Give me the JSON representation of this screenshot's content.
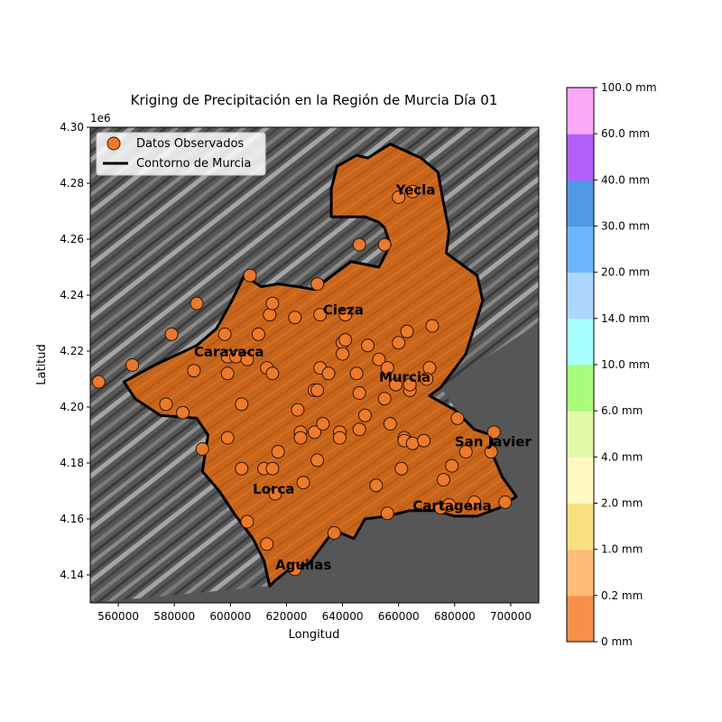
{
  "chart_data": {
    "type": "scatter",
    "title": "Kriging de Precipitación en la Región de Murcia Día 01",
    "xlabel": "Longitud",
    "ylabel": "Latitud",
    "y_offset_label": "1e6",
    "xlim": [
      550000,
      710000
    ],
    "ylim": [
      4130000,
      4300000
    ],
    "x_ticks": [
      560000,
      580000,
      600000,
      620000,
      640000,
      660000,
      680000,
      700000
    ],
    "x_tick_labels": [
      "560000",
      "580000",
      "600000",
      "620000",
      "640000",
      "660000",
      "680000",
      "700000"
    ],
    "y_ticks": [
      4140000,
      4160000,
      4180000,
      4200000,
      4220000,
      4240000,
      4260000,
      4280000,
      4300000
    ],
    "y_tick_labels": [
      "4.14",
      "4.16",
      "4.18",
      "4.20",
      "4.22",
      "4.24",
      "4.26",
      "4.28",
      "4.30"
    ],
    "legend": {
      "placement": "top-left",
      "entries": [
        {
          "label": "Datos Observados",
          "kind": "marker"
        },
        {
          "label": "Contorno de Murcia",
          "kind": "line"
        }
      ]
    },
    "colors": {
      "region_fill": "#c8651b",
      "marker_fill": "#f07a2a",
      "marker_edge": "#2a1608",
      "contour": "#000000",
      "hillshade_dark": "#4a4a4a",
      "hillshade_mid": "#6e6e6e",
      "hillshade_light": "#c8c8c8"
    },
    "colorbar": {
      "labels": [
        "0 mm",
        "0.2 mm",
        "1.0 mm",
        "2.0 mm",
        "4.0 mm",
        "6.0 mm",
        "10.0 mm",
        "14.0 mm",
        "20.0 mm",
        "30.0 mm",
        "40.0 mm",
        "60.0 mm",
        "100.0 mm"
      ],
      "colors": [
        "#f7904a",
        "#ffbb78",
        "#f9e07f",
        "#fff8c3",
        "#e4f9a8",
        "#a9fb7c",
        "#a6fefe",
        "#acd6fe",
        "#6db5fe",
        "#4f98e4",
        "#b35ef9",
        "#fba7fa"
      ]
    },
    "cities": [
      {
        "name": "Yecla",
        "x": 659000,
        "y": 4276000
      },
      {
        "name": "Cieza",
        "x": 633000,
        "y": 4233000
      },
      {
        "name": "Caravaca",
        "x": 587000,
        "y": 4218000
      },
      {
        "name": "Murcia",
        "x": 653000,
        "y": 4209000
      },
      {
        "name": "San Javier",
        "x": 680000,
        "y": 4186000
      },
      {
        "name": "Lorca",
        "x": 608000,
        "y": 4169000
      },
      {
        "name": "Cartagena",
        "x": 665000,
        "y": 4163000
      },
      {
        "name": "Aguilas",
        "x": 616000,
        "y": 4142000
      }
    ],
    "contour": [
      [
        562000,
        4209000
      ],
      [
        573000,
        4215000
      ],
      [
        588000,
        4222000
      ],
      [
        595000,
        4228000
      ],
      [
        600000,
        4237000
      ],
      [
        605000,
        4247000
      ],
      [
        611000,
        4243000
      ],
      [
        617000,
        4244000
      ],
      [
        624000,
        4243000
      ],
      [
        630000,
        4242000
      ],
      [
        635000,
        4246000
      ],
      [
        643000,
        4252000
      ],
      [
        653000,
        4250000
      ],
      [
        657000,
        4258000
      ],
      [
        655000,
        4264000
      ],
      [
        653000,
        4266000
      ],
      [
        648000,
        4268000
      ],
      [
        636000,
        4268000
      ],
      [
        636000,
        4278000
      ],
      [
        638000,
        4286000
      ],
      [
        645000,
        4290000
      ],
      [
        649000,
        4289000
      ],
      [
        657000,
        4294000
      ],
      [
        668000,
        4289000
      ],
      [
        674000,
        4284000
      ],
      [
        676000,
        4273000
      ],
      [
        678000,
        4263000
      ],
      [
        677000,
        4255000
      ],
      [
        688000,
        4247000
      ],
      [
        690000,
        4238000
      ],
      [
        684000,
        4219000
      ],
      [
        675000,
        4207000
      ],
      [
        671000,
        4204000
      ],
      [
        680000,
        4199000
      ],
      [
        687000,
        4192000
      ],
      [
        693000,
        4190000
      ],
      [
        694000,
        4182000
      ],
      [
        697000,
        4175000
      ],
      [
        702000,
        4168000
      ],
      [
        696000,
        4164000
      ],
      [
        688000,
        4161000
      ],
      [
        680000,
        4161000
      ],
      [
        673000,
        4163000
      ],
      [
        664000,
        4163000
      ],
      [
        656000,
        4161000
      ],
      [
        648000,
        4160000
      ],
      [
        644000,
        4153000
      ],
      [
        637000,
        4156000
      ],
      [
        628000,
        4144000
      ],
      [
        621000,
        4142000
      ],
      [
        616000,
        4138000
      ],
      [
        614000,
        4136000
      ],
      [
        612000,
        4145000
      ],
      [
        608000,
        4153000
      ],
      [
        602000,
        4161000
      ],
      [
        596000,
        4170000
      ],
      [
        590000,
        4177000
      ],
      [
        592000,
        4190000
      ],
      [
        588000,
        4196000
      ],
      [
        575000,
        4197000
      ],
      [
        566000,
        4203000
      ]
    ],
    "points": [
      {
        "x": 588000,
        "y": 4237000
      },
      {
        "x": 607000,
        "y": 4247000
      },
      {
        "x": 614000,
        "y": 4233000
      },
      {
        "x": 615000,
        "y": 4237000
      },
      {
        "x": 623000,
        "y": 4232000
      },
      {
        "x": 631000,
        "y": 4244000
      },
      {
        "x": 632000,
        "y": 4233000
      },
      {
        "x": 660000,
        "y": 4275000
      },
      {
        "x": 665000,
        "y": 4277000
      },
      {
        "x": 646000,
        "y": 4258000
      },
      {
        "x": 655000,
        "y": 4258000
      },
      {
        "x": 579000,
        "y": 4226000
      },
      {
        "x": 565000,
        "y": 4215000
      },
      {
        "x": 553000,
        "y": 4209000
      },
      {
        "x": 587000,
        "y": 4213000
      },
      {
        "x": 598000,
        "y": 4226000
      },
      {
        "x": 599000,
        "y": 4218000
      },
      {
        "x": 602000,
        "y": 4218000
      },
      {
        "x": 606000,
        "y": 4217000
      },
      {
        "x": 610000,
        "y": 4226000
      },
      {
        "x": 613000,
        "y": 4214000
      },
      {
        "x": 615000,
        "y": 4212000
      },
      {
        "x": 599000,
        "y": 4212000
      },
      {
        "x": 577000,
        "y": 4201000
      },
      {
        "x": 583000,
        "y": 4198000
      },
      {
        "x": 599000,
        "y": 4189000
      },
      {
        "x": 604000,
        "y": 4201000
      },
      {
        "x": 590000,
        "y": 4185000
      },
      {
        "x": 604000,
        "y": 4178000
      },
      {
        "x": 612000,
        "y": 4178000
      },
      {
        "x": 615000,
        "y": 4178000
      },
      {
        "x": 616000,
        "y": 4169000
      },
      {
        "x": 617000,
        "y": 4184000
      },
      {
        "x": 606000,
        "y": 4159000
      },
      {
        "x": 613000,
        "y": 4151000
      },
      {
        "x": 626000,
        "y": 4173000
      },
      {
        "x": 624000,
        "y": 4199000
      },
      {
        "x": 625000,
        "y": 4191000
      },
      {
        "x": 625000,
        "y": 4189000
      },
      {
        "x": 630000,
        "y": 4206000
      },
      {
        "x": 630000,
        "y": 4191000
      },
      {
        "x": 631000,
        "y": 4181000
      },
      {
        "x": 632000,
        "y": 4214000
      },
      {
        "x": 633000,
        "y": 4194000
      },
      {
        "x": 635000,
        "y": 4212000
      },
      {
        "x": 631000,
        "y": 4206000
      },
      {
        "x": 639000,
        "y": 4191000
      },
      {
        "x": 639000,
        "y": 4189000
      },
      {
        "x": 637000,
        "y": 4155000
      },
      {
        "x": 640000,
        "y": 4223000
      },
      {
        "x": 641000,
        "y": 4224000
      },
      {
        "x": 640000,
        "y": 4219000
      },
      {
        "x": 641000,
        "y": 4233000
      },
      {
        "x": 645000,
        "y": 4212000
      },
      {
        "x": 646000,
        "y": 4205000
      },
      {
        "x": 646000,
        "y": 4192000
      },
      {
        "x": 648000,
        "y": 4197000
      },
      {
        "x": 649000,
        "y": 4222000
      },
      {
        "x": 652000,
        "y": 4172000
      },
      {
        "x": 653000,
        "y": 4217000
      },
      {
        "x": 655000,
        "y": 4203000
      },
      {
        "x": 656000,
        "y": 4214000
      },
      {
        "x": 656000,
        "y": 4162000
      },
      {
        "x": 657000,
        "y": 4194000
      },
      {
        "x": 659000,
        "y": 4208000
      },
      {
        "x": 660000,
        "y": 4223000
      },
      {
        "x": 661000,
        "y": 4178000
      },
      {
        "x": 662000,
        "y": 4189000
      },
      {
        "x": 662000,
        "y": 4188000
      },
      {
        "x": 663000,
        "y": 4227000
      },
      {
        "x": 664000,
        "y": 4206000
      },
      {
        "x": 665000,
        "y": 4187000
      },
      {
        "x": 664000,
        "y": 4208000
      },
      {
        "x": 669000,
        "y": 4188000
      },
      {
        "x": 671000,
        "y": 4214000
      },
      {
        "x": 672000,
        "y": 4229000
      },
      {
        "x": 670000,
        "y": 4210000
      },
      {
        "x": 675000,
        "y": 4164000
      },
      {
        "x": 676000,
        "y": 4174000
      },
      {
        "x": 678000,
        "y": 4165000
      },
      {
        "x": 679000,
        "y": 4179000
      },
      {
        "x": 681000,
        "y": 4196000
      },
      {
        "x": 684000,
        "y": 4184000
      },
      {
        "x": 687000,
        "y": 4166000
      },
      {
        "x": 693000,
        "y": 4184000
      },
      {
        "x": 694000,
        "y": 4191000
      },
      {
        "x": 698000,
        "y": 4166000
      },
      {
        "x": 623000,
        "y": 4142000
      }
    ]
  }
}
